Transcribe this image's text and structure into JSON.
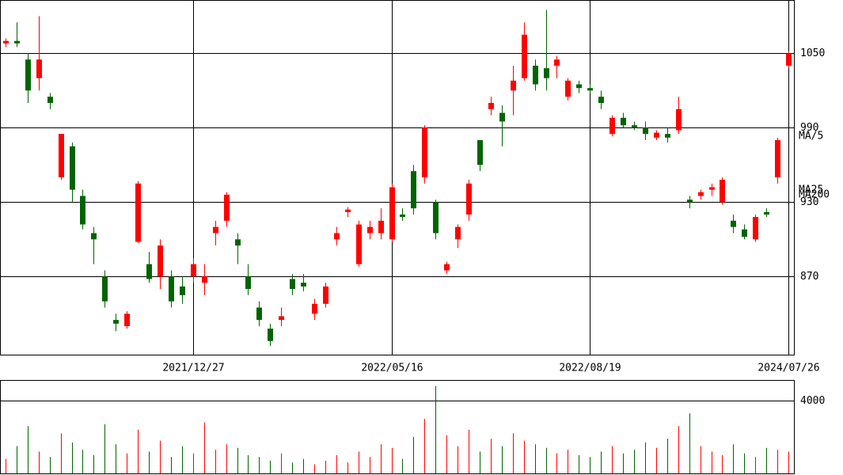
{
  "chart_data": {
    "type": "candlestick",
    "ylim": [
      807,
      1093
    ],
    "yticks": [
      870,
      930,
      990,
      1050
    ],
    "xlim": [
      -0.5,
      71.5
    ],
    "xticks": [
      {
        "value": 17,
        "label": "2021/12/27"
      },
      {
        "value": 35,
        "label": "2022/05/16"
      },
      {
        "value": 53,
        "label": "2022/08/19"
      },
      {
        "value": 71,
        "label": "2024/07/26"
      }
    ],
    "up_color": "#ff0000",
    "down_color": "#006400",
    "candles": [
      [
        1058,
        1062,
        1055,
        1060
      ],
      [
        1060,
        1075,
        1055,
        1058
      ],
      [
        1045,
        1050,
        1010,
        1020
      ],
      [
        1030,
        1080,
        1020,
        1045
      ],
      [
        1015,
        1018,
        1005,
        1010
      ],
      [
        950,
        985,
        948,
        985
      ],
      [
        975,
        978,
        930,
        940
      ],
      [
        935,
        940,
        908,
        912
      ],
      [
        905,
        910,
        880,
        900
      ],
      [
        870,
        875,
        845,
        850
      ],
      [
        835,
        840,
        826,
        832
      ],
      [
        830,
        842,
        828,
        840
      ],
      [
        898,
        947,
        897,
        945
      ],
      [
        880,
        890,
        865,
        868
      ],
      [
        870,
        900,
        860,
        895
      ],
      [
        870,
        875,
        845,
        850
      ],
      [
        862,
        870,
        848,
        855
      ],
      [
        870,
        885,
        865,
        880
      ],
      [
        865,
        880,
        855,
        870
      ],
      [
        905,
        915,
        895,
        910
      ],
      [
        915,
        938,
        910,
        936
      ],
      [
        900,
        905,
        880,
        895
      ],
      [
        870,
        880,
        855,
        860
      ],
      [
        845,
        850,
        830,
        835
      ],
      [
        828,
        832,
        814,
        818
      ],
      [
        835,
        845,
        830,
        838
      ],
      [
        868,
        872,
        855,
        860
      ],
      [
        865,
        872,
        858,
        862
      ],
      [
        840,
        852,
        835,
        848
      ],
      [
        848,
        865,
        845,
        862
      ],
      [
        900,
        910,
        895,
        905
      ],
      [
        922,
        926,
        918,
        924
      ],
      [
        880,
        915,
        878,
        912
      ],
      [
        905,
        915,
        900,
        910
      ],
      [
        905,
        925,
        900,
        915
      ],
      [
        900,
        945,
        898,
        942
      ],
      [
        920,
        925,
        915,
        918
      ],
      [
        955,
        960,
        920,
        925
      ],
      [
        950,
        992,
        945,
        990
      ],
      [
        930,
        932,
        900,
        905
      ],
      [
        875,
        882,
        872,
        880
      ],
      [
        900,
        912,
        893,
        910
      ],
      [
        920,
        948,
        915,
        945
      ],
      [
        980,
        980,
        955,
        960
      ],
      [
        1005,
        1015,
        1000,
        1010
      ],
      [
        1002,
        1008,
        975,
        995
      ],
      [
        1020,
        1040,
        1000,
        1028
      ],
      [
        1030,
        1075,
        1028,
        1065
      ],
      [
        1040,
        1045,
        1020,
        1025
      ],
      [
        1038,
        1085,
        1020,
        1030
      ],
      [
        1040,
        1048,
        1030,
        1045
      ],
      [
        1015,
        1030,
        1012,
        1028
      ],
      [
        1025,
        1028,
        1018,
        1022
      ],
      [
        1022,
        1025,
        1018,
        1020
      ],
      [
        1015,
        1020,
        1005,
        1010
      ],
      [
        985,
        1000,
        983,
        998
      ],
      [
        998,
        1002,
        990,
        992
      ],
      [
        992,
        995,
        988,
        990
      ],
      [
        990,
        995,
        980,
        985
      ],
      [
        982,
        988,
        980,
        986
      ],
      [
        985,
        990,
        978,
        982
      ],
      [
        988,
        1015,
        985,
        1005
      ],
      [
        932,
        935,
        925,
        930
      ],
      [
        935,
        940,
        932,
        938
      ],
      [
        940,
        945,
        935,
        942
      ],
      [
        930,
        950,
        928,
        948
      ],
      [
        915,
        920,
        905,
        910
      ],
      [
        908,
        912,
        900,
        902
      ],
      [
        900,
        920,
        898,
        918
      ],
      [
        922,
        925,
        918,
        920
      ],
      [
        950,
        982,
        945,
        980
      ],
      [
        1040,
        1052,
        1038,
        1050
      ]
    ],
    "volume": {
      "ylim": [
        0,
        5130
      ],
      "yticks": [
        4000
      ],
      "values": [
        800,
        1500,
        2600,
        1200,
        900,
        2200,
        1700,
        1300,
        1000,
        2700,
        1600,
        1100,
        2400,
        1200,
        1800,
        900,
        1500,
        1100,
        2800,
        1300,
        1600,
        1400,
        1000,
        900,
        700,
        1100,
        600,
        800,
        500,
        700,
        1000,
        600,
        1200,
        900,
        1600,
        1400,
        800,
        2000,
        3000,
        4800,
        2100,
        1500,
        2400,
        1200,
        1900,
        1500,
        2200,
        1800,
        1600,
        1400,
        1100,
        1300,
        1000,
        900,
        1200,
        1500,
        1100,
        1300,
        1700,
        1400,
        1900,
        2600,
        3300,
        1500,
        1200,
        1000,
        1600,
        1100,
        900,
        1400,
        1300,
        1200
      ]
    },
    "series": [
      {
        "name": "MA/5",
        "color": "#ffa500"
      },
      {
        "name": "MA25",
        "color": "#ff00ff"
      },
      {
        "name": "MA200",
        "color": "#008000"
      }
    ]
  }
}
